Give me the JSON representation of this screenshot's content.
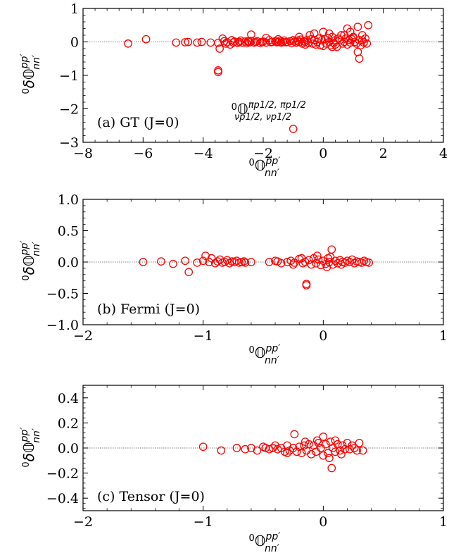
{
  "colors": {
    "marker": "#ff0000",
    "axes": "#000000"
  },
  "chart_data": [
    {
      "type": "scatter",
      "panel_label": "(a) GT (J=0)",
      "xlabel": {
        "base": "0",
        "main": "𝕆",
        "sup": "pp′",
        "sub": "nn′"
      },
      "ylabel": {
        "base": "0",
        "main": "δ𝕆",
        "sup": "pp′",
        "sub": "nn′"
      },
      "xlim": [
        -8,
        4
      ],
      "ylim": [
        -3,
        1
      ],
      "xticks": [
        -8,
        -6,
        -4,
        -2,
        0,
        2,
        4
      ],
      "yticks": [
        -3,
        -2,
        -1,
        0,
        1
      ],
      "xtick_labels": [
        "−8",
        "−6",
        "−4",
        "−2",
        "0",
        "2",
        "4"
      ],
      "ytick_labels": [
        "−3",
        "−2",
        "−1",
        "0",
        "1"
      ],
      "annotation": {
        "base": "0",
        "main": "𝕆",
        "sup": "πp1/2, πp1/2",
        "sub": "νp1/2, νp1/2",
        "x": -1.0,
        "y": -2.05
      },
      "points": [
        [
          -6.5,
          -0.05
        ],
        [
          -5.9,
          0.08
        ],
        [
          -4.9,
          -0.02
        ],
        [
          -4.6,
          -0.01
        ],
        [
          -4.5,
          0.0
        ],
        [
          -4.2,
          -0.02
        ],
        [
          -4.05,
          0.0
        ],
        [
          -3.75,
          -0.02
        ],
        [
          -3.5,
          -0.85
        ],
        [
          -3.5,
          -0.9
        ],
        [
          -3.5,
          -0.03
        ],
        [
          -3.45,
          -0.2
        ],
        [
          -3.35,
          0.1
        ],
        [
          -3.3,
          0.02
        ],
        [
          -3.25,
          -0.05
        ],
        [
          -3.2,
          -0.01
        ],
        [
          -3.1,
          -0.08
        ],
        [
          -3.0,
          -0.02
        ],
        [
          -2.95,
          0.01
        ],
        [
          -2.85,
          -0.03
        ],
        [
          -2.8,
          0.0
        ],
        [
          -2.75,
          0.04
        ],
        [
          -2.7,
          -0.02
        ],
        [
          -2.6,
          0.01
        ],
        [
          -2.55,
          -0.04
        ],
        [
          -2.5,
          0.02
        ],
        [
          -2.45,
          -0.01
        ],
        [
          -2.4,
          0.03
        ],
        [
          -2.3,
          -0.02
        ],
        [
          -2.25,
          0.0
        ],
        [
          -2.2,
          0.02
        ],
        [
          -2.1,
          -0.03
        ],
        [
          -2.05,
          0.0
        ],
        [
          -2.0,
          0.01
        ],
        [
          -1.9,
          -0.02
        ],
        [
          -1.8,
          0.05
        ],
        [
          -1.75,
          -0.01
        ],
        [
          -1.7,
          0.0
        ],
        [
          -1.6,
          0.02
        ],
        [
          -1.55,
          -0.01
        ],
        [
          -1.5,
          0.0
        ],
        [
          -1.45,
          0.03
        ],
        [
          -1.4,
          -0.02
        ],
        [
          -1.35,
          0.0
        ],
        [
          -1.3,
          0.04
        ],
        [
          -1.25,
          -0.01
        ],
        [
          -1.2,
          0.0
        ],
        [
          -1.1,
          0.02
        ],
        [
          -1.05,
          -0.04
        ],
        [
          -1.0,
          0.05
        ],
        [
          -0.95,
          0.01
        ],
        [
          -0.9,
          -0.02
        ],
        [
          -0.85,
          0.04
        ],
        [
          -0.8,
          0.0
        ],
        [
          -0.75,
          0.07
        ],
        [
          -0.7,
          -0.05
        ],
        [
          -0.65,
          0.02
        ],
        [
          -0.6,
          0.0
        ],
        [
          -0.55,
          0.05
        ],
        [
          -0.5,
          -0.03
        ],
        [
          -0.45,
          0.2
        ],
        [
          -0.4,
          0.08
        ],
        [
          -0.35,
          -0.05
        ],
        [
          -0.3,
          0.06
        ],
        [
          -0.25,
          -0.08
        ],
        [
          -0.2,
          0.0
        ],
        [
          -0.15,
          0.1
        ],
        [
          -0.1,
          -0.1
        ],
        [
          -0.05,
          0.05
        ],
        [
          0.0,
          -0.12
        ],
        [
          0.05,
          0.08
        ],
        [
          0.1,
          -0.05
        ],
        [
          0.15,
          0.12
        ],
        [
          0.2,
          0.0
        ],
        [
          0.25,
          -0.1
        ],
        [
          0.3,
          0.15
        ],
        [
          0.35,
          -0.03
        ],
        [
          0.4,
          0.05
        ],
        [
          0.45,
          -0.15
        ],
        [
          0.5,
          0.1
        ],
        [
          0.55,
          0.05
        ],
        [
          0.6,
          0.2
        ],
        [
          0.65,
          -0.05
        ],
        [
          0.7,
          0.0
        ],
        [
          0.75,
          0.1
        ],
        [
          0.8,
          -0.08
        ],
        [
          0.85,
          0.06
        ],
        [
          0.9,
          -0.02
        ],
        [
          0.95,
          0.08
        ],
        [
          1.0,
          0.12
        ],
        [
          1.05,
          0.0
        ],
        [
          1.1,
          -0.05
        ],
        [
          1.15,
          0.45
        ],
        [
          1.2,
          0.05
        ],
        [
          1.25,
          -0.1
        ],
        [
          1.3,
          0.05
        ],
        [
          1.35,
          -0.02
        ],
        [
          1.4,
          0.1
        ],
        [
          1.45,
          -0.05
        ],
        [
          1.5,
          0.5
        ],
        [
          1.2,
          -0.5
        ],
        [
          1.15,
          -0.3
        ],
        [
          -1.0,
          -2.6
        ],
        [
          -2.5,
          0.0
        ],
        [
          -2.4,
          0.22
        ],
        [
          -1.5,
          0.08
        ],
        [
          -0.8,
          0.15
        ],
        [
          -0.3,
          0.25
        ],
        [
          0.2,
          0.25
        ],
        [
          0.4,
          -0.08
        ],
        [
          0.8,
          0.4
        ],
        [
          1.0,
          0.15
        ],
        [
          -1.9,
          0.12
        ],
        [
          -3.05,
          0.05
        ],
        [
          -0.6,
          -0.08
        ],
        [
          0.0,
          0.3
        ],
        [
          0.3,
          -0.15
        ],
        [
          0.7,
          0.2
        ],
        [
          1.3,
          0.2
        ],
        [
          0.9,
          0.3
        ]
      ]
    },
    {
      "type": "scatter",
      "panel_label": "(b) Fermi (J=0)",
      "xlabel": {
        "base": "0",
        "main": "𝕆",
        "sup": "pp′",
        "sub": "nn′"
      },
      "ylabel": {
        "base": "0",
        "main": "δ𝕆",
        "sup": "pp′",
        "sub": "nn′"
      },
      "xlim": [
        -2,
        1
      ],
      "ylim": [
        -1.0,
        1.0
      ],
      "xticks": [
        -2,
        -1,
        0,
        1
      ],
      "yticks": [
        -1.0,
        -0.5,
        0.0,
        0.5,
        1.0
      ],
      "xtick_labels": [
        "−2",
        "−1",
        "0",
        "1"
      ],
      "ytick_labels": [
        "−1.0",
        "−0.5",
        "0.0",
        "0.5",
        "1.0"
      ],
      "points": [
        [
          -1.5,
          0.0
        ],
        [
          -1.35,
          0.01
        ],
        [
          -1.25,
          -0.03
        ],
        [
          -1.15,
          0.02
        ],
        [
          -1.12,
          -0.16
        ],
        [
          -1.05,
          -0.01
        ],
        [
          -1.0,
          0.02
        ],
        [
          -0.98,
          0.1
        ],
        [
          -0.95,
          0.0
        ],
        [
          -0.93,
          0.06
        ],
        [
          -0.9,
          -0.02
        ],
        [
          -0.88,
          0.01
        ],
        [
          -0.86,
          0.04
        ],
        [
          -0.84,
          -0.01
        ],
        [
          -0.82,
          0.0
        ],
        [
          -0.8,
          0.03
        ],
        [
          -0.78,
          -0.02
        ],
        [
          -0.76,
          0.01
        ],
        [
          -0.74,
          0.0
        ],
        [
          -0.72,
          0.02
        ],
        [
          -0.7,
          -0.01
        ],
        [
          -0.68,
          0.0
        ],
        [
          -0.66,
          0.01
        ],
        [
          -0.65,
          -0.01
        ],
        [
          -0.45,
          0.0
        ],
        [
          -0.38,
          0.01
        ],
        [
          -0.35,
          -0.02
        ],
        [
          -0.3,
          0.0
        ],
        [
          -0.27,
          0.02
        ],
        [
          -0.24,
          -0.01
        ],
        [
          -0.2,
          0.05
        ],
        [
          -0.17,
          -0.02
        ],
        [
          -0.15,
          0.0
        ],
        [
          -0.14,
          -0.35
        ],
        [
          -0.14,
          -0.37
        ],
        [
          -0.12,
          0.03
        ],
        [
          -0.1,
          -0.04
        ],
        [
          -0.08,
          0.06
        ],
        [
          -0.06,
          -0.02
        ],
        [
          -0.04,
          0.04
        ],
        [
          -0.02,
          -0.05
        ],
        [
          0.0,
          0.02
        ],
        [
          0.02,
          -0.03
        ],
        [
          0.04,
          0.06
        ],
        [
          0.05,
          0.0
        ],
        [
          0.06,
          0.08
        ],
        [
          0.07,
          0.2
        ],
        [
          0.08,
          -0.04
        ],
        [
          0.1,
          0.02
        ],
        [
          0.12,
          -0.02
        ],
        [
          0.14,
          0.03
        ],
        [
          0.16,
          0.0
        ],
        [
          0.18,
          -0.01
        ],
        [
          0.2,
          0.02
        ],
        [
          0.22,
          0.0
        ],
        [
          0.24,
          0.04
        ],
        [
          0.26,
          -0.02
        ],
        [
          0.28,
          0.01
        ],
        [
          0.3,
          0.0
        ],
        [
          0.32,
          -0.01
        ],
        [
          0.34,
          0.02
        ],
        [
          0.36,
          0.0
        ],
        [
          0.38,
          -0.01
        ],
        [
          -0.05,
          0.1
        ],
        [
          0.03,
          -0.08
        ],
        [
          -0.18,
          0.06
        ],
        [
          0.15,
          -0.04
        ],
        [
          -0.25,
          -0.04
        ],
        [
          -0.4,
          0.02
        ],
        [
          -0.6,
          0.0
        ]
      ]
    },
    {
      "type": "scatter",
      "panel_label": "(c) Tensor (J=0)",
      "xlabel": {
        "base": "0",
        "main": "𝕆",
        "sup": "pp′",
        "sub": "nn′"
      },
      "ylabel": {
        "base": "0",
        "main": "δ𝕆",
        "sup": "pp′",
        "sub": "nn′"
      },
      "xlim": [
        -2,
        1
      ],
      "ylim": [
        -0.5,
        0.5
      ],
      "xticks": [
        -2,
        -1,
        0,
        1
      ],
      "yticks": [
        -0.4,
        -0.2,
        0.0,
        0.2,
        0.4
      ],
      "xtick_labels": [
        "−2",
        "−1",
        "0",
        "1"
      ],
      "ytick_labels": [
        "−0.4",
        "−0.2",
        "0.0",
        "0.2",
        "0.4"
      ],
      "points": [
        [
          -1.0,
          0.01
        ],
        [
          -0.85,
          -0.02
        ],
        [
          -0.72,
          0.0
        ],
        [
          -0.65,
          -0.01
        ],
        [
          -0.6,
          0.0
        ],
        [
          -0.55,
          -0.02
        ],
        [
          -0.5,
          0.01
        ],
        [
          -0.48,
          0.0
        ],
        [
          -0.45,
          -0.01
        ],
        [
          -0.42,
          0.0
        ],
        [
          -0.4,
          0.02
        ],
        [
          -0.38,
          -0.01
        ],
        [
          -0.35,
          0.0
        ],
        [
          -0.32,
          -0.03
        ],
        [
          -0.3,
          0.02
        ],
        [
          -0.28,
          -0.02
        ],
        [
          -0.25,
          0.0
        ],
        [
          -0.24,
          0.11
        ],
        [
          -0.22,
          -0.03
        ],
        [
          -0.2,
          0.01
        ],
        [
          -0.18,
          -0.04
        ],
        [
          -0.16,
          0.02
        ],
        [
          -0.14,
          -0.02
        ],
        [
          -0.12,
          0.03
        ],
        [
          -0.1,
          -0.05
        ],
        [
          -0.08,
          0.02
        ],
        [
          -0.06,
          -0.03
        ],
        [
          -0.04,
          0.04
        ],
        [
          -0.02,
          0.0
        ],
        [
          0.0,
          0.09
        ],
        [
          0.0,
          -0.06
        ],
        [
          0.02,
          0.03
        ],
        [
          0.04,
          -0.04
        ],
        [
          0.06,
          0.05
        ],
        [
          0.07,
          -0.16
        ],
        [
          0.08,
          0.0
        ],
        [
          0.1,
          -0.03
        ],
        [
          0.12,
          0.03
        ],
        [
          0.14,
          -0.02
        ],
        [
          0.16,
          0.02
        ],
        [
          0.18,
          -0.01
        ],
        [
          0.2,
          0.04
        ],
        [
          0.22,
          -0.01
        ],
        [
          0.24,
          0.02
        ],
        [
          0.26,
          0.0
        ],
        [
          0.28,
          -0.02
        ],
        [
          0.3,
          0.04
        ],
        [
          0.33,
          -0.02
        ],
        [
          -0.15,
          0.05
        ],
        [
          0.05,
          -0.08
        ],
        [
          -0.05,
          0.06
        ],
        [
          0.1,
          0.06
        ],
        [
          -0.3,
          -0.04
        ],
        [
          0.15,
          -0.05
        ]
      ]
    }
  ]
}
